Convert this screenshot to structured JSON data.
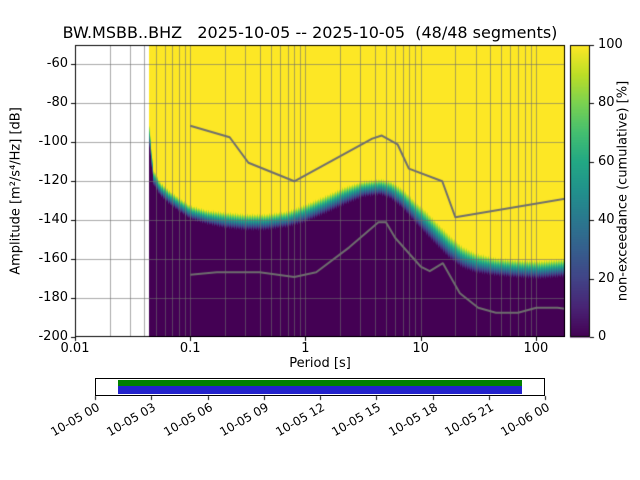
{
  "chart_data": {
    "type": "heatmap",
    "title": "BW.MSBB..BHZ   2025-10-05 -- 2025-10-05  (48/48 segments)",
    "xlabel": "Period [s]",
    "ylabel": "Amplitude [m²/s⁴/Hz] [dB]",
    "x_scale": "log",
    "xlim": [
      0.01,
      179
    ],
    "ylim": [
      -200,
      -50
    ],
    "x_ticks": [
      0.01,
      0.1,
      1,
      10,
      100
    ],
    "x_tick_labels": [
      "0.01",
      "0.1",
      "1",
      "10",
      "100"
    ],
    "y_ticks": [
      -60,
      -80,
      -100,
      -120,
      -140,
      -160,
      -180,
      -200
    ],
    "grid": true,
    "colorbar": {
      "label": "non-exceedance (cumulative) [%]",
      "ticks": [
        0,
        20,
        40,
        60,
        80,
        100
      ],
      "colormap": "viridis",
      "stops": [
        "#440154",
        "#482475",
        "#414487",
        "#355f8d",
        "#2a788e",
        "#21918c",
        "#22a884",
        "#44bf70",
        "#7ad151",
        "#bddf26",
        "#fde725"
      ]
    },
    "data_period_min": 0.044,
    "cumulative_boundary": {
      "periods": [
        0.044,
        0.048,
        0.055,
        0.065,
        0.08,
        0.1,
        0.14,
        0.2,
        0.3,
        0.45,
        0.7,
        1.0,
        1.5,
        2.2,
        3.2,
        4.5,
        5.5,
        7.0,
        9.0,
        11.0,
        14.0,
        18.0,
        23.0,
        30.0,
        45.0,
        70.0,
        110.0,
        179.0
      ],
      "center_db": [
        -95,
        -118,
        -124,
        -128,
        -132,
        -136,
        -138.5,
        -140,
        -141,
        -141,
        -139.5,
        -136.5,
        -132,
        -127.5,
        -124,
        -123,
        -124.5,
        -129,
        -136,
        -141,
        -147.5,
        -154,
        -159,
        -162,
        -164,
        -165,
        -165.5,
        -164.5
      ],
      "width_db": [
        12,
        8,
        7,
        7,
        7,
        7,
        7,
        8,
        8,
        8,
        8,
        9,
        9,
        9,
        8,
        8,
        9,
        10,
        11,
        12,
        12,
        12,
        11,
        10,
        9,
        9,
        9,
        9
      ]
    },
    "noise_models": {
      "color": "#6e6e6e",
      "nhnm": {
        "periods": [
          0.1,
          0.22,
          0.32,
          0.8,
          3.8,
          4.6,
          6.3,
          7.9,
          15.4,
          20.0,
          354.8
        ],
        "db": [
          -91.5,
          -97.4,
          -110.5,
          -120.0,
          -98.1,
          -96.5,
          -101.0,
          -113.5,
          -120.0,
          -138.5,
          -126.0
        ]
      },
      "nlnm": {
        "periods": [
          0.1,
          0.17,
          0.4,
          0.8,
          1.24,
          2.4,
          4.3,
          5.0,
          6.0,
          10.0,
          12.0,
          15.6,
          21.9,
          31.6,
          45.0,
          70.0,
          101.0,
          154.0,
          328.0
        ],
        "db": [
          -168.0,
          -166.7,
          -166.7,
          -169.2,
          -166.7,
          -153.95,
          -141.1,
          -141.1,
          -149.0,
          -163.8,
          -166.2,
          -162.1,
          -177.5,
          -185.0,
          -187.5,
          -187.5,
          -185.0,
          -185.0,
          -187.5
        ]
      }
    }
  },
  "timeline": {
    "tick_labels": [
      "10-05 00",
      "10-05 03",
      "10-05 06",
      "10-05 09",
      "10-05 12",
      "10-05 15",
      "10-05 18",
      "10-05 21",
      "10-06 00"
    ],
    "coverage_start_frac": 0.05,
    "coverage_end_frac": 0.95,
    "colors": {
      "green": "#008000",
      "blue": "#2222cc"
    }
  }
}
